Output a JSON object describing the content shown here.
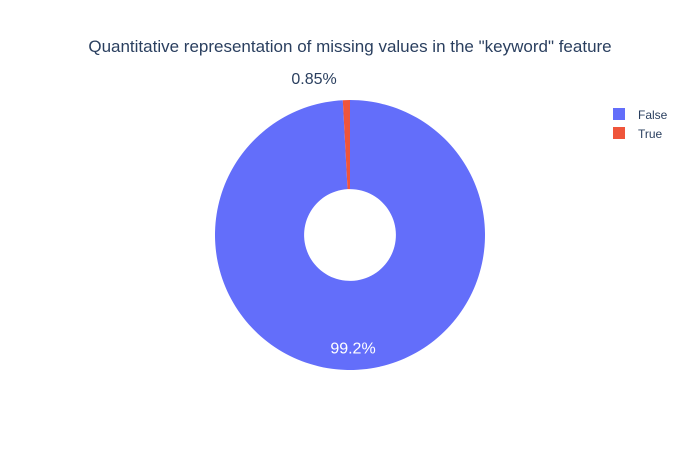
{
  "chart_data": {
    "type": "pie",
    "hole": 0.34,
    "title": "Quantitative representation of missing values in the \"keyword\" feature",
    "labels": [
      "False",
      "True"
    ],
    "values": [
      99.15,
      0.85
    ],
    "display_labels": [
      "99.2%",
      "0.85%"
    ],
    "colors": [
      "#636efa",
      "#ef553b"
    ],
    "legend": {
      "position": "top-right",
      "entries": [
        "False",
        "True"
      ]
    }
  }
}
